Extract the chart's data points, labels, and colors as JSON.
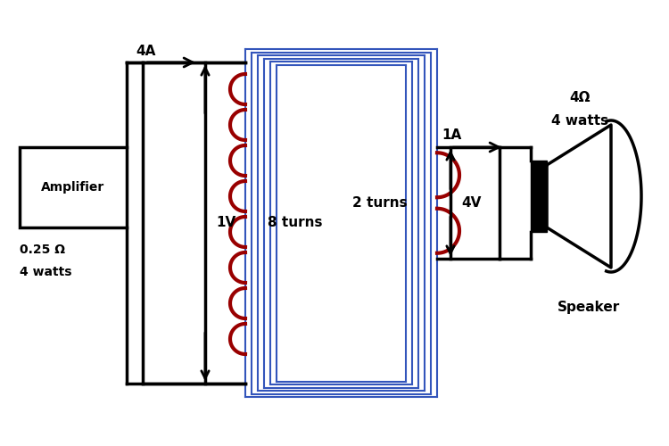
{
  "bg_color": "#ffffff",
  "line_color": "#000000",
  "blue_color": "#3355bb",
  "red_color": "#990000",
  "amplifier_label": "Amplifier",
  "amp_spec1": "0.25 Ω",
  "amp_spec2": "4 watts",
  "speaker_label": "Speaker",
  "spk_spec1": "4Ω",
  "spk_spec2": "4 watts",
  "label_4A": "4A",
  "label_1V": "1V",
  "label_8turns": "8 turns",
  "label_2turns": "2 turns",
  "label_1A": "1A",
  "label_4V": "4V"
}
